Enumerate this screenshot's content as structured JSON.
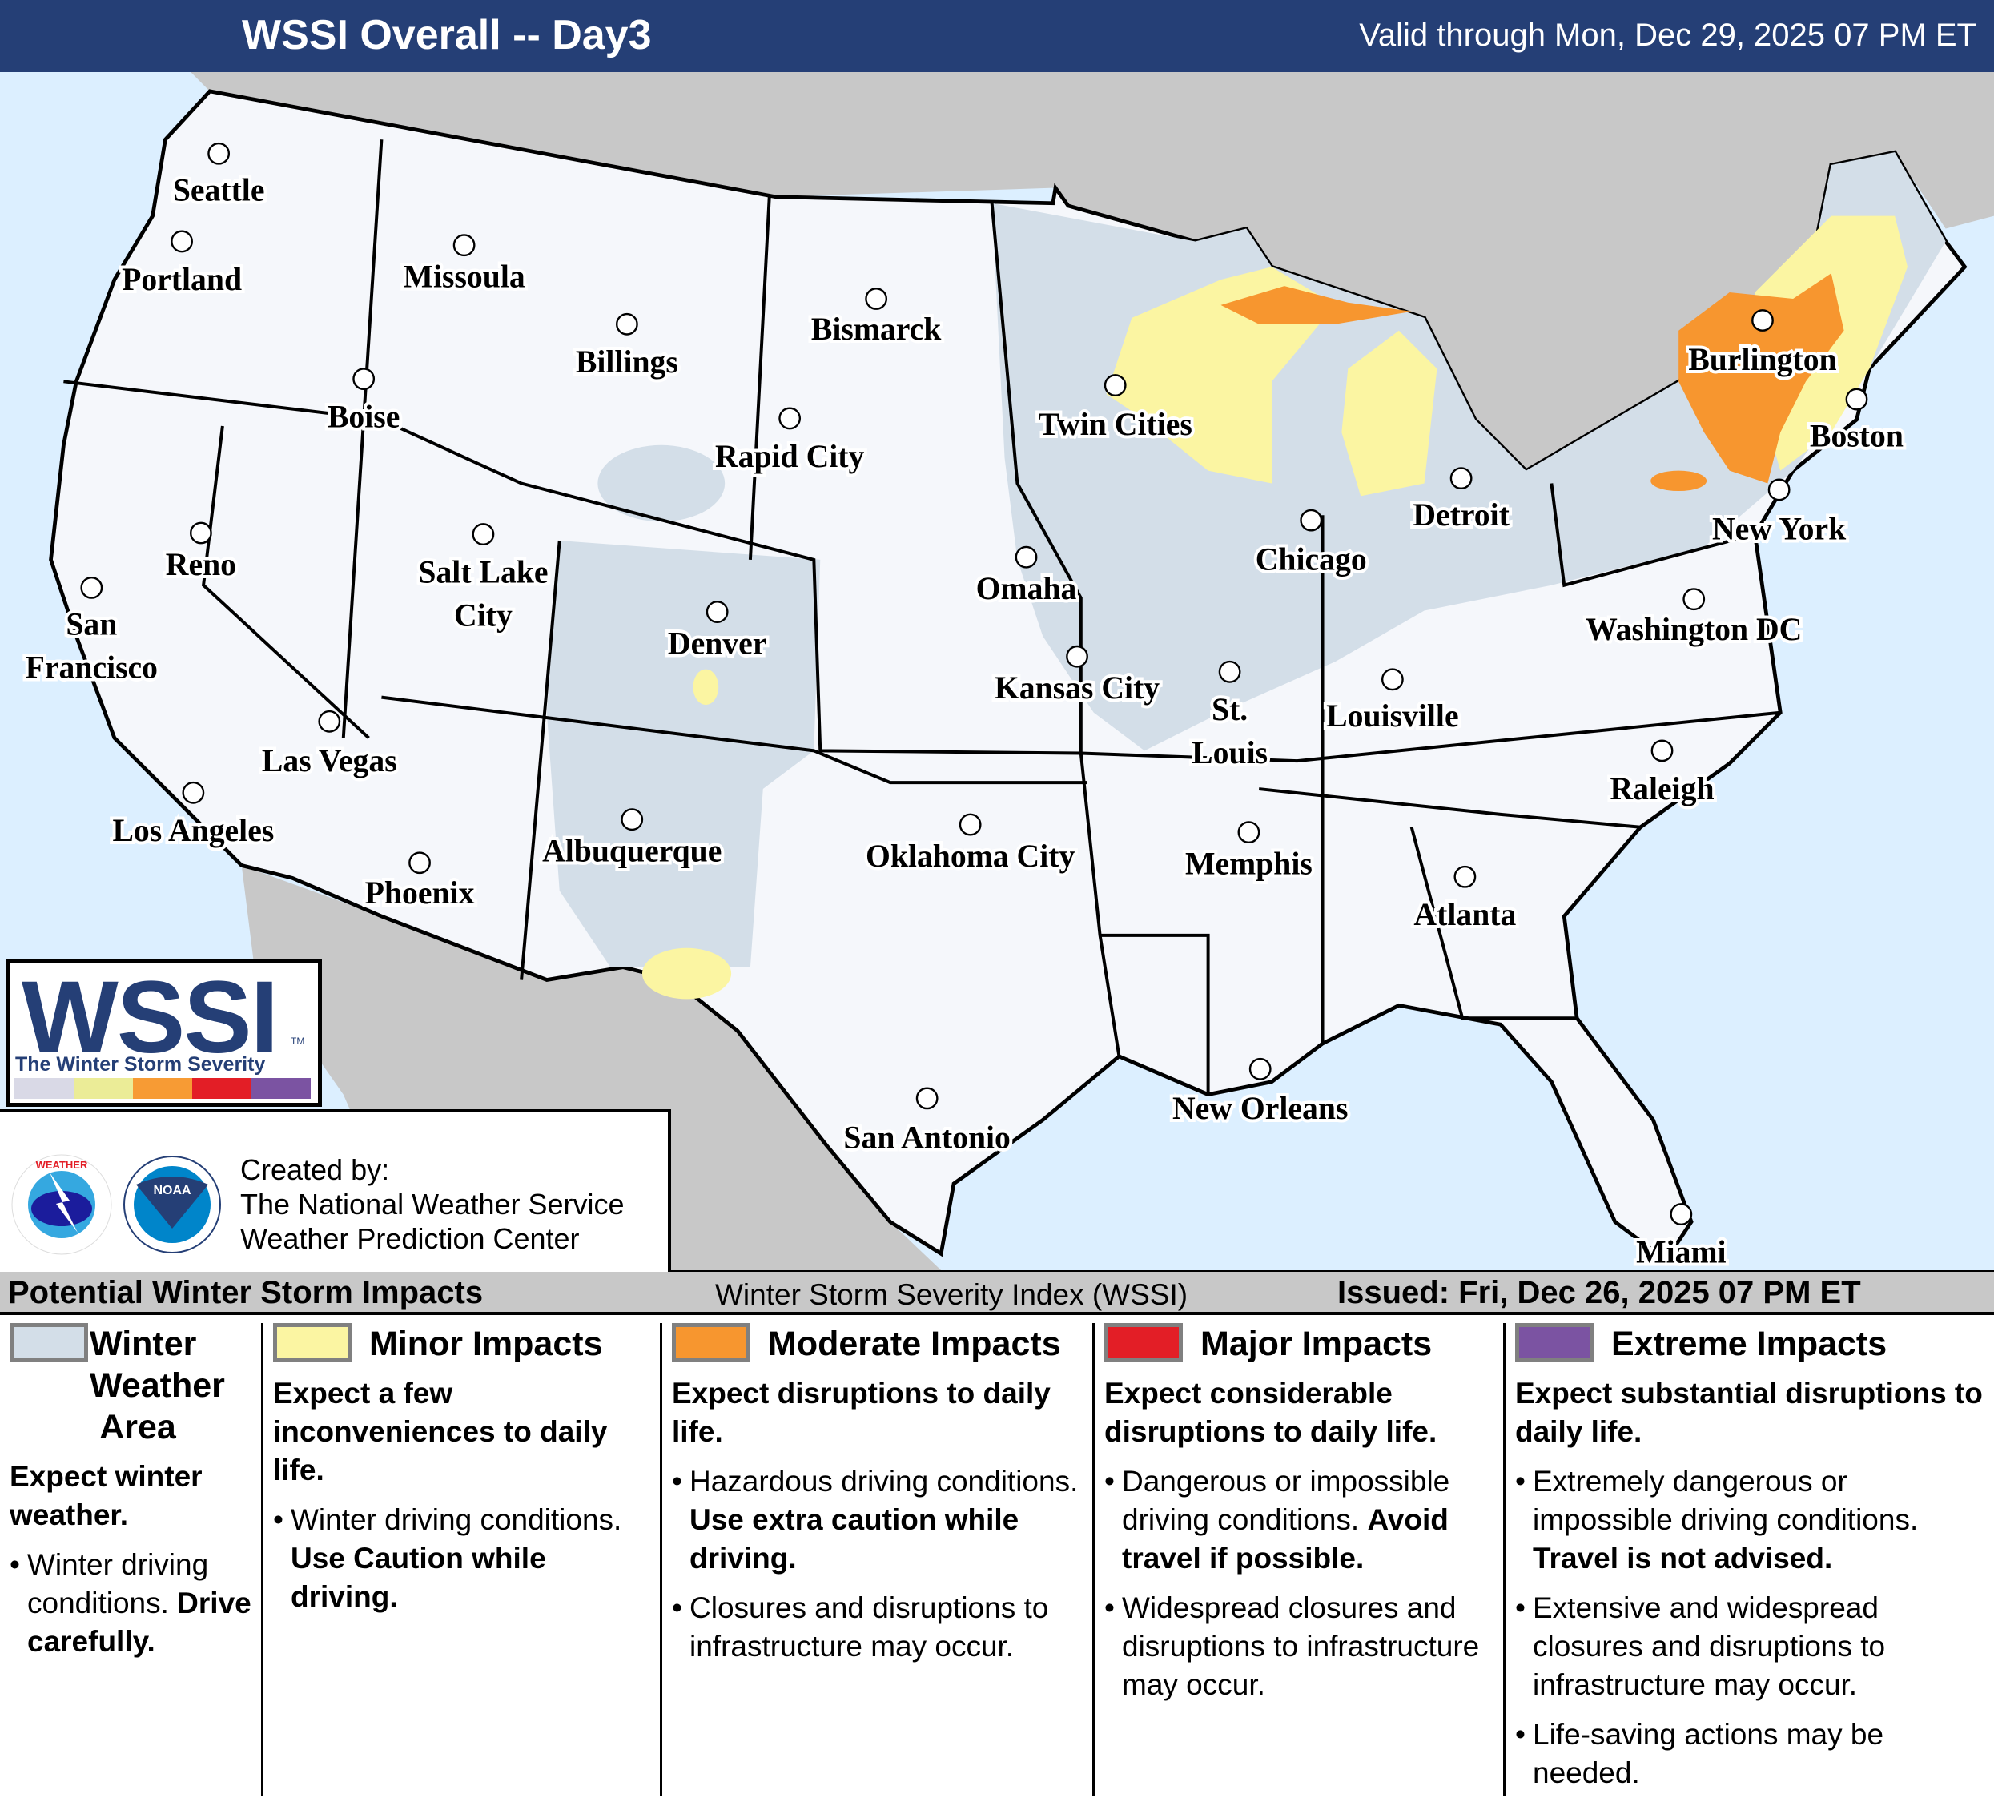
{
  "header": {
    "title": "WSSI Overall -- Day3",
    "valid": "Valid through Mon, Dec 29, 2025 07 PM ET"
  },
  "colors": {
    "header_bg": "#253f76",
    "ocean": "#dcefff",
    "foreign_land": "#c8c8c8",
    "us_land": "#f5f7fb",
    "winter_weather": "#d3dee8",
    "minor": "#fbf5a2",
    "moderate": "#f7962f",
    "major": "#e31e26",
    "extreme": "#7b53a2"
  },
  "map": {
    "cities": [
      "Seattle",
      "Portland",
      "Missoula",
      "Billings",
      "Bismarck",
      "Boise",
      "Rapid City",
      "Twin Cities",
      "Burlington",
      "Boston",
      "Detroit",
      "New York",
      "Chicago",
      "Reno",
      "Salt Lake City",
      "Omaha",
      "San Francisco",
      "Denver",
      "Washington DC",
      "Kansas City",
      "St. Louis",
      "Louisville",
      "Las Vegas",
      "Raleigh",
      "Los Angeles",
      "Albuquerque",
      "Oklahoma City",
      "Memphis",
      "Phoenix",
      "Atlanta",
      "New Orleans",
      "San Antonio",
      "Miami"
    ]
  },
  "logo": {
    "big": "WSSI",
    "tm": "TM",
    "sub": "The Winter Storm Severity Index",
    "bar_colors": [
      "#d9d9e6",
      "#ebec97",
      "#f79b34",
      "#e31e26",
      "#7b53a2"
    ]
  },
  "credit": {
    "line1": "Created by:",
    "line2": "The National Weather Service",
    "line3": "Weather Prediction Center",
    "nws_logo": "NATIONAL WEATHER SERVICE",
    "noaa_logo": "NOAA"
  },
  "legend_bar": {
    "left": "Potential Winter Storm Impacts",
    "middle": "Winter Storm Severity Index (WSSI)",
    "issued": "Issued: Fri, Dec 26, 2025 07 PM ET"
  },
  "legend": [
    {
      "title": "Winter Weather Area",
      "color": "#d3dee8",
      "summary": "Expect winter weather.",
      "bullets": [
        {
          "text": "Winter driving conditions. ",
          "bold": "Drive carefully."
        }
      ]
    },
    {
      "title": "Minor Impacts",
      "color": "#fbf5a2",
      "summary": "Expect a few inconveniences to daily life.",
      "bullets": [
        {
          "text": "Winter driving conditions. ",
          "bold": "Use Caution while driving."
        }
      ]
    },
    {
      "title": "Moderate Impacts",
      "color": "#f7962f",
      "summary": "Expect disruptions to daily life.",
      "bullets": [
        {
          "text": "Hazardous driving conditions. ",
          "bold": "Use extra caution while driving."
        },
        {
          "text": "Closures and disruptions to infrastructure may occur.",
          "bold": ""
        }
      ]
    },
    {
      "title": "Major Impacts",
      "color": "#e31e26",
      "summary": "Expect considerable disruptions to daily life.",
      "bullets": [
        {
          "text": "Dangerous or impossible driving conditions. ",
          "bold": "Avoid travel if possible."
        },
        {
          "text": "Widespread closures and disruptions to infrastructure may occur.",
          "bold": ""
        }
      ]
    },
    {
      "title": "Extreme Impacts",
      "color": "#7b53a2",
      "summary": "Expect substantial disruptions to daily life.",
      "bullets": [
        {
          "text": "Extremely dangerous or impossible driving conditions. ",
          "bold": "Travel is not advised."
        },
        {
          "text": "Extensive and widespread closures and disruptions to infrastructure may occur.",
          "bold": ""
        },
        {
          "text": "Life-saving actions may be needed.",
          "bold": ""
        }
      ]
    }
  ]
}
